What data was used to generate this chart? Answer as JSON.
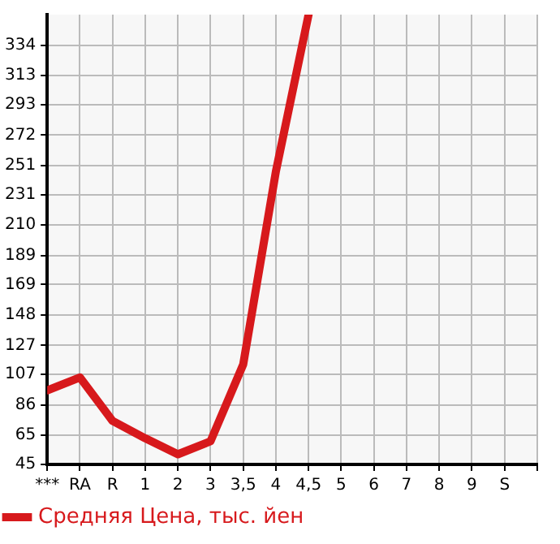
{
  "chart_data": {
    "type": "line",
    "categories": [
      "***",
      "RA",
      "R",
      "1",
      "2",
      "3",
      "3,5",
      "4",
      "4,5",
      "5",
      "6",
      "7",
      "8",
      "9",
      "S"
    ],
    "series": [
      {
        "name": "Средняя Цена, тыс. йен",
        "color": "#d7191c",
        "values": [
          96,
          105,
          75,
          63,
          52,
          61,
          114,
          247,
          355,
          null,
          null,
          null,
          null,
          null,
          null
        ]
      }
    ],
    "ylim": [
      45,
      355
    ],
    "yticks": [
      45,
      65,
      86,
      107,
      127,
      148,
      169,
      189,
      210,
      231,
      251,
      272,
      293,
      313,
      334
    ],
    "grid": true,
    "legend": "bottom left",
    "marker": "none",
    "line_style": "solid"
  }
}
